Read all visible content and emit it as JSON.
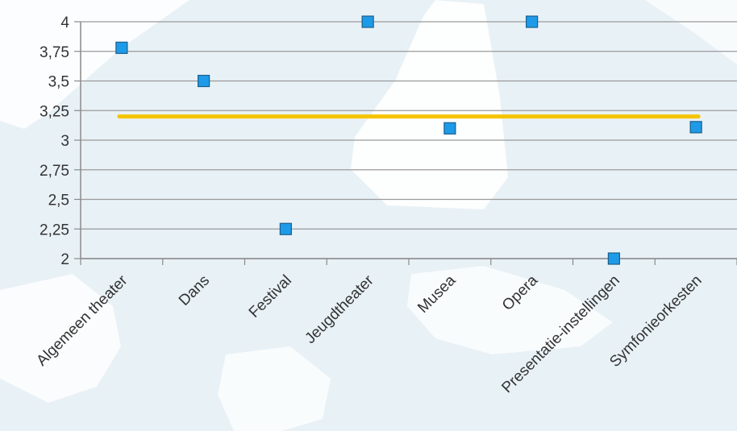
{
  "chart_data": {
    "type": "scatter",
    "title": "",
    "xlabel": "",
    "ylabel": "",
    "categories": [
      "Algemeen theater",
      "Dans",
      "Festival",
      "Jeugdtheater",
      "Musea",
      "Opera",
      "Presentatie-instellingen",
      "Symfonieorkesten"
    ],
    "series": [
      {
        "values": [
          3.78,
          3.5,
          2.25,
          4.0,
          3.1,
          4.0,
          2.0,
          3.11
        ]
      }
    ],
    "reference_line": {
      "value": 3.2
    },
    "ylim": [
      2,
      4
    ],
    "yticks": [
      "2",
      "2,25",
      "2,5",
      "2,75",
      "3",
      "3,25",
      "3,5",
      "3,75",
      "4"
    ],
    "grid": true,
    "legend": "none",
    "colors": {
      "marker_fill": "#1e9be8",
      "marker_stroke": "#1a5e8c",
      "reference_line": "#f5c400",
      "grid": "#9a9a9a",
      "axis": "#8a8a8a"
    }
  }
}
